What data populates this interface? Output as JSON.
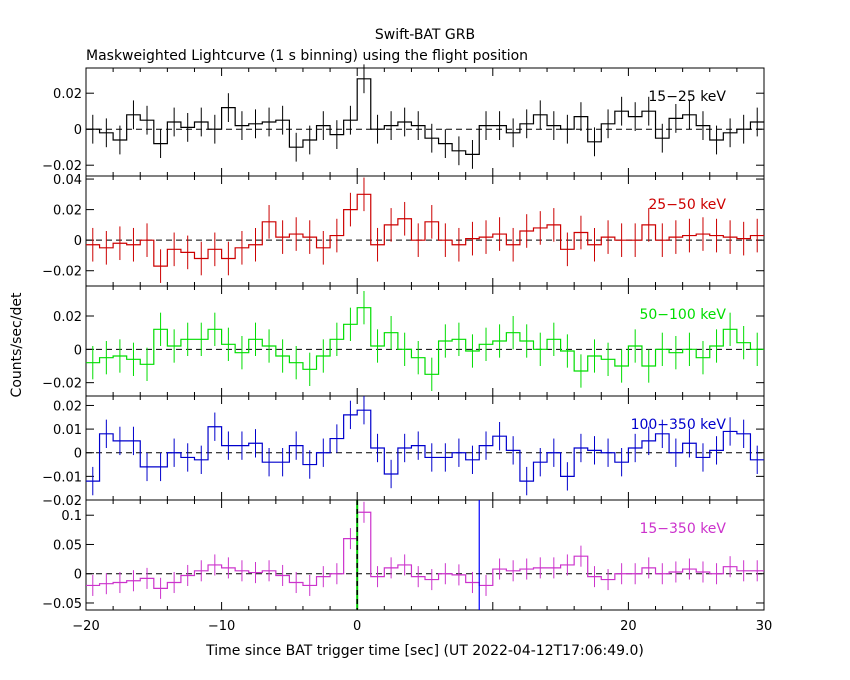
{
  "chart_data": {
    "type": "line",
    "title": "Swift-BAT GRB",
    "subtitle": "Maskweighted Lightcurve (1 s binning) using the flight position",
    "xlabel": "Time since BAT trigger time [sec] (UT 2022-04-12T17:06:49.0)",
    "ylabel": "Counts/sec/det",
    "xlim": [
      -20,
      30
    ],
    "x_ticks": [
      -20,
      -10,
      0,
      20,
      30
    ],
    "x_tick_labels": [
      "−20",
      "−10",
      "0",
      "20",
      "30"
    ],
    "x": [
      -20,
      -19,
      -18,
      -17,
      -16,
      -15,
      -14,
      -13,
      -12,
      -11,
      -10,
      -9,
      -8,
      -7,
      -6,
      -5,
      -4,
      -3,
      -2,
      -1,
      0,
      1,
      2,
      3,
      4,
      5,
      6,
      7,
      8,
      9,
      10,
      11,
      12,
      13,
      14,
      15,
      16,
      17,
      18,
      19,
      20,
      21,
      22,
      23,
      24,
      25,
      26,
      27,
      28,
      29
    ],
    "trigger_marker_x": 0,
    "extra_marker_x": 9,
    "panels": [
      {
        "band": "15−25 keV",
        "color": "#000000",
        "ylim": [
          -0.026,
          0.034
        ],
        "y_ticks": [
          -0.02,
          0,
          0.02
        ],
        "y_tick_labels": [
          "−0.02",
          "0",
          "0.02"
        ],
        "values": [
          0.0,
          -0.002,
          -0.006,
          0.008,
          0.005,
          -0.008,
          0.004,
          0.001,
          0.004,
          0.0,
          0.012,
          0.002,
          0.003,
          0.004,
          0.005,
          -0.01,
          -0.006,
          0.002,
          -0.003,
          0.005,
          0.028,
          0.0,
          0.002,
          0.004,
          0.002,
          -0.005,
          -0.008,
          -0.012,
          -0.014,
          0.002,
          0.002,
          -0.002,
          0.003,
          0.008,
          0.002,
          0.0,
          0.007,
          -0.007,
          0.003,
          0.01,
          0.007,
          0.01,
          -0.005,
          0.006,
          0.008,
          0.002,
          -0.006,
          -0.002,
          0.0,
          0.004
        ],
        "error": 0.008
      },
      {
        "band": "25−50 keV",
        "color": "#cc0000",
        "ylim": [
          -0.03,
          0.042
        ],
        "y_ticks": [
          -0.02,
          0,
          0.02,
          0.04
        ],
        "y_tick_labels": [
          "−0.02",
          "0",
          "0.02",
          "0.04"
        ],
        "values": [
          -0.003,
          -0.005,
          -0.002,
          -0.003,
          0.0,
          -0.017,
          -0.006,
          -0.008,
          -0.012,
          -0.006,
          -0.012,
          -0.005,
          -0.003,
          0.012,
          0.002,
          0.004,
          0.002,
          -0.005,
          0.003,
          0.02,
          0.03,
          -0.003,
          0.01,
          0.014,
          0.0,
          0.012,
          0.0,
          -0.003,
          0.001,
          0.002,
          0.004,
          -0.003,
          0.006,
          0.008,
          0.01,
          -0.006,
          0.005,
          -0.003,
          0.002,
          0.0,
          0.0,
          0.01,
          0.0,
          0.002,
          0.003,
          0.004,
          0.003,
          0.002,
          0.001,
          0.003
        ],
        "error": 0.011
      },
      {
        "band": "50−100 keV",
        "color": "#00dd00",
        "ylim": [
          -0.028,
          0.038
        ],
        "y_ticks": [
          -0.02,
          0,
          0.02
        ],
        "y_tick_labels": [
          "−0.02",
          "0",
          "0.02"
        ],
        "values": [
          -0.008,
          -0.005,
          -0.004,
          -0.006,
          -0.009,
          0.012,
          0.002,
          0.006,
          0.006,
          0.012,
          0.003,
          -0.002,
          0.006,
          0.002,
          -0.004,
          -0.008,
          -0.012,
          -0.004,
          0.006,
          0.015,
          0.025,
          0.002,
          0.01,
          0.0,
          -0.005,
          -0.015,
          0.005,
          0.006,
          -0.001,
          0.003,
          0.005,
          0.01,
          0.005,
          0.0,
          0.006,
          -0.001,
          -0.013,
          -0.004,
          -0.006,
          -0.01,
          0.002,
          -0.01,
          0.0,
          -0.002,
          0.0,
          -0.005,
          0.002,
          0.012,
          0.004,
          0.0
        ],
        "error": 0.01
      },
      {
        "band": "100−350 keV",
        "color": "#0000cc",
        "ylim": [
          -0.02,
          0.024
        ],
        "y_ticks": [
          -0.02,
          -0.01,
          0,
          0.01,
          0.02
        ],
        "y_tick_labels": [
          "−0.02",
          "−0.01",
          "0",
          "0.01",
          "0.02"
        ],
        "values": [
          -0.012,
          0.008,
          0.005,
          0.005,
          -0.006,
          -0.006,
          0.0,
          -0.002,
          -0.003,
          0.011,
          0.003,
          0.003,
          0.004,
          -0.004,
          -0.004,
          0.003,
          -0.005,
          0.0,
          0.006,
          0.016,
          0.018,
          0.002,
          -0.009,
          0.002,
          0.003,
          -0.002,
          -0.002,
          0.0,
          -0.003,
          0.003,
          0.007,
          0.001,
          -0.012,
          -0.004,
          0.0,
          -0.01,
          0.002,
          0.001,
          0.0,
          -0.004,
          0.002,
          0.005,
          0.008,
          0.0,
          0.004,
          -0.002,
          0.001,
          0.009,
          0.008,
          -0.003
        ],
        "error": 0.006
      },
      {
        "band": "15−350 keV",
        "color": "#cc33cc",
        "ylim": [
          -0.062,
          0.126
        ],
        "y_ticks": [
          -0.05,
          0,
          0.05,
          0.1
        ],
        "y_tick_labels": [
          "−0.05",
          "0",
          "0.05",
          "0.1"
        ],
        "values": [
          -0.02,
          -0.017,
          -0.015,
          -0.012,
          -0.008,
          -0.025,
          -0.015,
          -0.003,
          0.005,
          0.015,
          0.01,
          0.005,
          0.002,
          0.005,
          -0.003,
          -0.015,
          -0.02,
          -0.005,
          0.0,
          0.06,
          0.105,
          -0.005,
          0.01,
          0.015,
          -0.005,
          -0.01,
          0.0,
          -0.002,
          -0.015,
          -0.02,
          0.008,
          0.005,
          0.008,
          0.01,
          0.01,
          0.015,
          0.03,
          -0.005,
          -0.01,
          0.0,
          0.0,
          0.01,
          0.0,
          0.003,
          0.008,
          0.003,
          0.0,
          0.012,
          0.005,
          0.005
        ],
        "error": 0.018
      }
    ]
  }
}
